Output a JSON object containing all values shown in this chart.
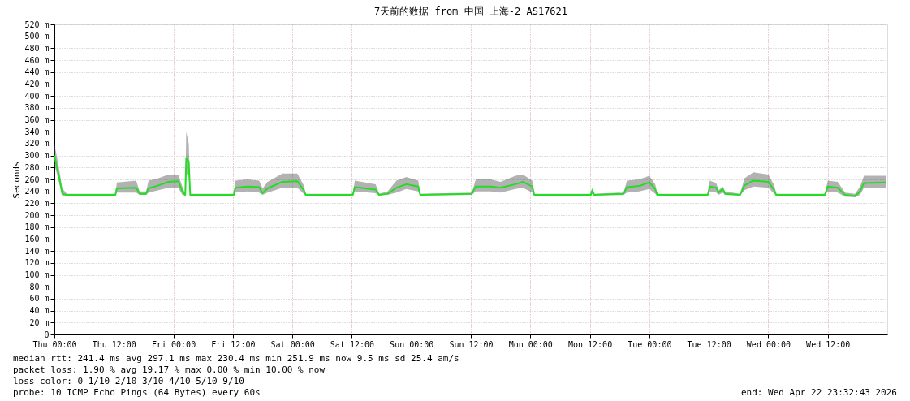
{
  "chart_data": {
    "type": "line",
    "title": "7天前的数据 from 中国 上海-2 AS17621",
    "ylabel": "Seconds",
    "x": [
      "2026-04-16T00:00",
      "2026-04-16T00:48",
      "2026-04-16T01:36",
      "2026-04-16T02:30",
      "2026-04-16T12:18",
      "2026-04-16T12:36",
      "2026-04-16T16:30",
      "2026-04-16T17:12",
      "2026-04-16T18:30",
      "2026-04-16T19:00",
      "2026-04-16T21:00",
      "2026-04-16T23:00",
      "2026-04-17T01:00",
      "2026-04-17T01:48",
      "2026-04-17T02:24",
      "2026-04-17T02:36",
      "2026-04-17T03:06",
      "2026-04-17T03:24",
      "2026-04-17T12:12",
      "2026-04-17T12:30",
      "2026-04-17T15:00",
      "2026-04-17T17:18",
      "2026-04-17T18:00",
      "2026-04-17T19:00",
      "2026-04-17T22:00",
      "2026-04-18T01:00",
      "2026-04-18T02:18",
      "2026-04-18T02:42",
      "2026-04-18T12:12",
      "2026-04-18T12:36",
      "2026-04-18T16:48",
      "2026-04-18T17:30",
      "2026-04-18T19:12",
      "2026-04-18T21:00",
      "2026-04-18T23:00",
      "2026-04-19T01:24",
      "2026-04-19T01:48",
      "2026-04-19T12:12",
      "2026-04-19T13:00",
      "2026-04-19T16:00",
      "2026-04-19T18:00",
      "2026-04-19T21:00",
      "2026-04-19T22:30",
      "2026-04-20T00:24",
      "2026-04-20T00:48",
      "2026-04-20T12:12",
      "2026-04-20T12:30",
      "2026-04-20T12:54",
      "2026-04-20T18:48",
      "2026-04-20T19:30",
      "2026-04-20T22:00",
      "2026-04-21T00:00",
      "2026-04-21T01:12",
      "2026-04-21T01:36",
      "2026-04-21T11:48",
      "2026-04-21T12:12",
      "2026-04-21T13:30",
      "2026-04-21T14:00",
      "2026-04-21T14:48",
      "2026-04-21T15:18",
      "2026-04-21T18:18",
      "2026-04-21T19:12",
      "2026-04-21T21:00",
      "2026-04-22T00:00",
      "2026-04-22T01:12",
      "2026-04-22T01:36",
      "2026-04-22T11:24",
      "2026-04-22T12:00",
      "2026-04-22T14:00",
      "2026-04-22T15:30",
      "2026-04-22T17:30",
      "2026-04-22T18:30",
      "2026-04-22T19:18",
      "2026-04-22T23:48"
    ],
    "series": [
      {
        "color": "#22dd22",
        "values": [
          300,
          270,
          236,
          234,
          234,
          245,
          246,
          236,
          236,
          245,
          250,
          256,
          257,
          240,
          234,
          295,
          290,
          234,
          234,
          246,
          248,
          247,
          237,
          245,
          256,
          257,
          242,
          234,
          234,
          247,
          243,
          234,
          236,
          246,
          252,
          248,
          234,
          236,
          248,
          248,
          246,
          252,
          256,
          248,
          234,
          234,
          242,
          234,
          236,
          247,
          249,
          255,
          244,
          234,
          234,
          248,
          246,
          238,
          244,
          236,
          234,
          250,
          258,
          256,
          242,
          234,
          234,
          248,
          246,
          234,
          232,
          240,
          254,
          255
        ],
        "lower": [
          285,
          260,
          232,
          233,
          233,
          238,
          238,
          234,
          234,
          238,
          242,
          246,
          246,
          234,
          233,
          270,
          265,
          233,
          233,
          238,
          240,
          238,
          234,
          238,
          246,
          246,
          236,
          233,
          233,
          240,
          237,
          233,
          234,
          238,
          244,
          240,
          233,
          234,
          240,
          240,
          238,
          244,
          246,
          238,
          233,
          233,
          236,
          233,
          234,
          238,
          240,
          244,
          236,
          233,
          233,
          240,
          238,
          234,
          238,
          234,
          233,
          242,
          248,
          246,
          236,
          233,
          233,
          240,
          238,
          231,
          230,
          234,
          246,
          246
        ],
        "upper": [
          320,
          285,
          245,
          236,
          236,
          255,
          258,
          240,
          240,
          258,
          262,
          268,
          268,
          248,
          236,
          340,
          320,
          236,
          236,
          258,
          260,
          258,
          245,
          256,
          270,
          270,
          250,
          236,
          236,
          258,
          252,
          236,
          240,
          258,
          264,
          258,
          236,
          238,
          260,
          260,
          256,
          266,
          268,
          258,
          236,
          236,
          246,
          236,
          238,
          258,
          260,
          266,
          252,
          236,
          236,
          258,
          254,
          242,
          248,
          240,
          236,
          262,
          272,
          268,
          250,
          236,
          236,
          258,
          256,
          238,
          236,
          248,
          266,
          266
        ]
      }
    ],
    "xlim": [
      "2026-04-16T00:00",
      "2026-04-23T00:00"
    ],
    "xticks": [
      {
        "value": "2026-04-16T00:00",
        "label": "Thu 00:00"
      },
      {
        "value": "2026-04-16T12:00",
        "label": "Thu 12:00"
      },
      {
        "value": "2026-04-17T00:00",
        "label": "Fri 00:00"
      },
      {
        "value": "2026-04-17T12:00",
        "label": "Fri 12:00"
      },
      {
        "value": "2026-04-18T00:00",
        "label": "Sat 00:00"
      },
      {
        "value": "2026-04-18T12:00",
        "label": "Sat 12:00"
      },
      {
        "value": "2026-04-19T00:00",
        "label": "Sun 00:00"
      },
      {
        "value": "2026-04-19T12:00",
        "label": "Sun 12:00"
      },
      {
        "value": "2026-04-20T00:00",
        "label": "Mon 00:00"
      },
      {
        "value": "2026-04-20T12:00",
        "label": "Mon 12:00"
      },
      {
        "value": "2026-04-21T00:00",
        "label": "Tue 00:00"
      },
      {
        "value": "2026-04-21T12:00",
        "label": "Tue 12:00"
      },
      {
        "value": "2026-04-22T00:00",
        "label": "Wed 00:00"
      },
      {
        "value": "2026-04-22T12:00",
        "label": "Wed 12:00"
      }
    ],
    "ylim": [
      0,
      520
    ],
    "yticks": [
      0,
      {
        "value": 20,
        "label": "20 m"
      },
      {
        "value": 40,
        "label": "40 m"
      },
      {
        "value": 60,
        "label": "60 m"
      },
      {
        "value": 80,
        "label": "80 m"
      },
      {
        "value": 100,
        "label": "100 m"
      },
      {
        "value": 120,
        "label": "120 m"
      },
      {
        "value": 140,
        "label": "140 m"
      },
      {
        "value": 160,
        "label": "160 m"
      },
      {
        "value": 180,
        "label": "180 m"
      },
      {
        "value": 200,
        "label": "200 m"
      },
      {
        "value": 220,
        "label": "220 m"
      },
      {
        "value": 240,
        "label": "240 m"
      },
      {
        "value": 260,
        "label": "260 m"
      },
      {
        "value": 280,
        "label": "280 m"
      },
      {
        "value": 300,
        "label": "300 m"
      },
      {
        "value": 320,
        "label": "320 m"
      },
      {
        "value": 340,
        "label": "340 m"
      },
      {
        "value": 360,
        "label": "360 m"
      },
      {
        "value": 380,
        "label": "380 m"
      },
      {
        "value": 400,
        "label": "400 m"
      },
      {
        "value": 420,
        "label": "420 m"
      },
      {
        "value": 440,
        "label": "440 m"
      },
      {
        "value": 460,
        "label": "460 m"
      },
      {
        "value": 480,
        "label": "480 m"
      },
      {
        "value": 500,
        "label": "500 m"
      },
      {
        "value": 520,
        "label": "520 m"
      }
    ],
    "grid": true,
    "annotations": [
      "median rtt:  241.4 ms avg  297.1 ms max  230.4 ms min  251.9 ms now  9.5 ms sd  25.4   am/s",
      "packet loss: 1.90 % avg  19.17 % max  0.00 % min  10.00 % now",
      "loss color:  0  1/10  2/10  3/10  4/10  5/10  9/10",
      "probe:       10 ICMP Echo Pings (64 Bytes) every 60s",
      "end: Wed Apr 22 23:32:43 2026"
    ]
  }
}
